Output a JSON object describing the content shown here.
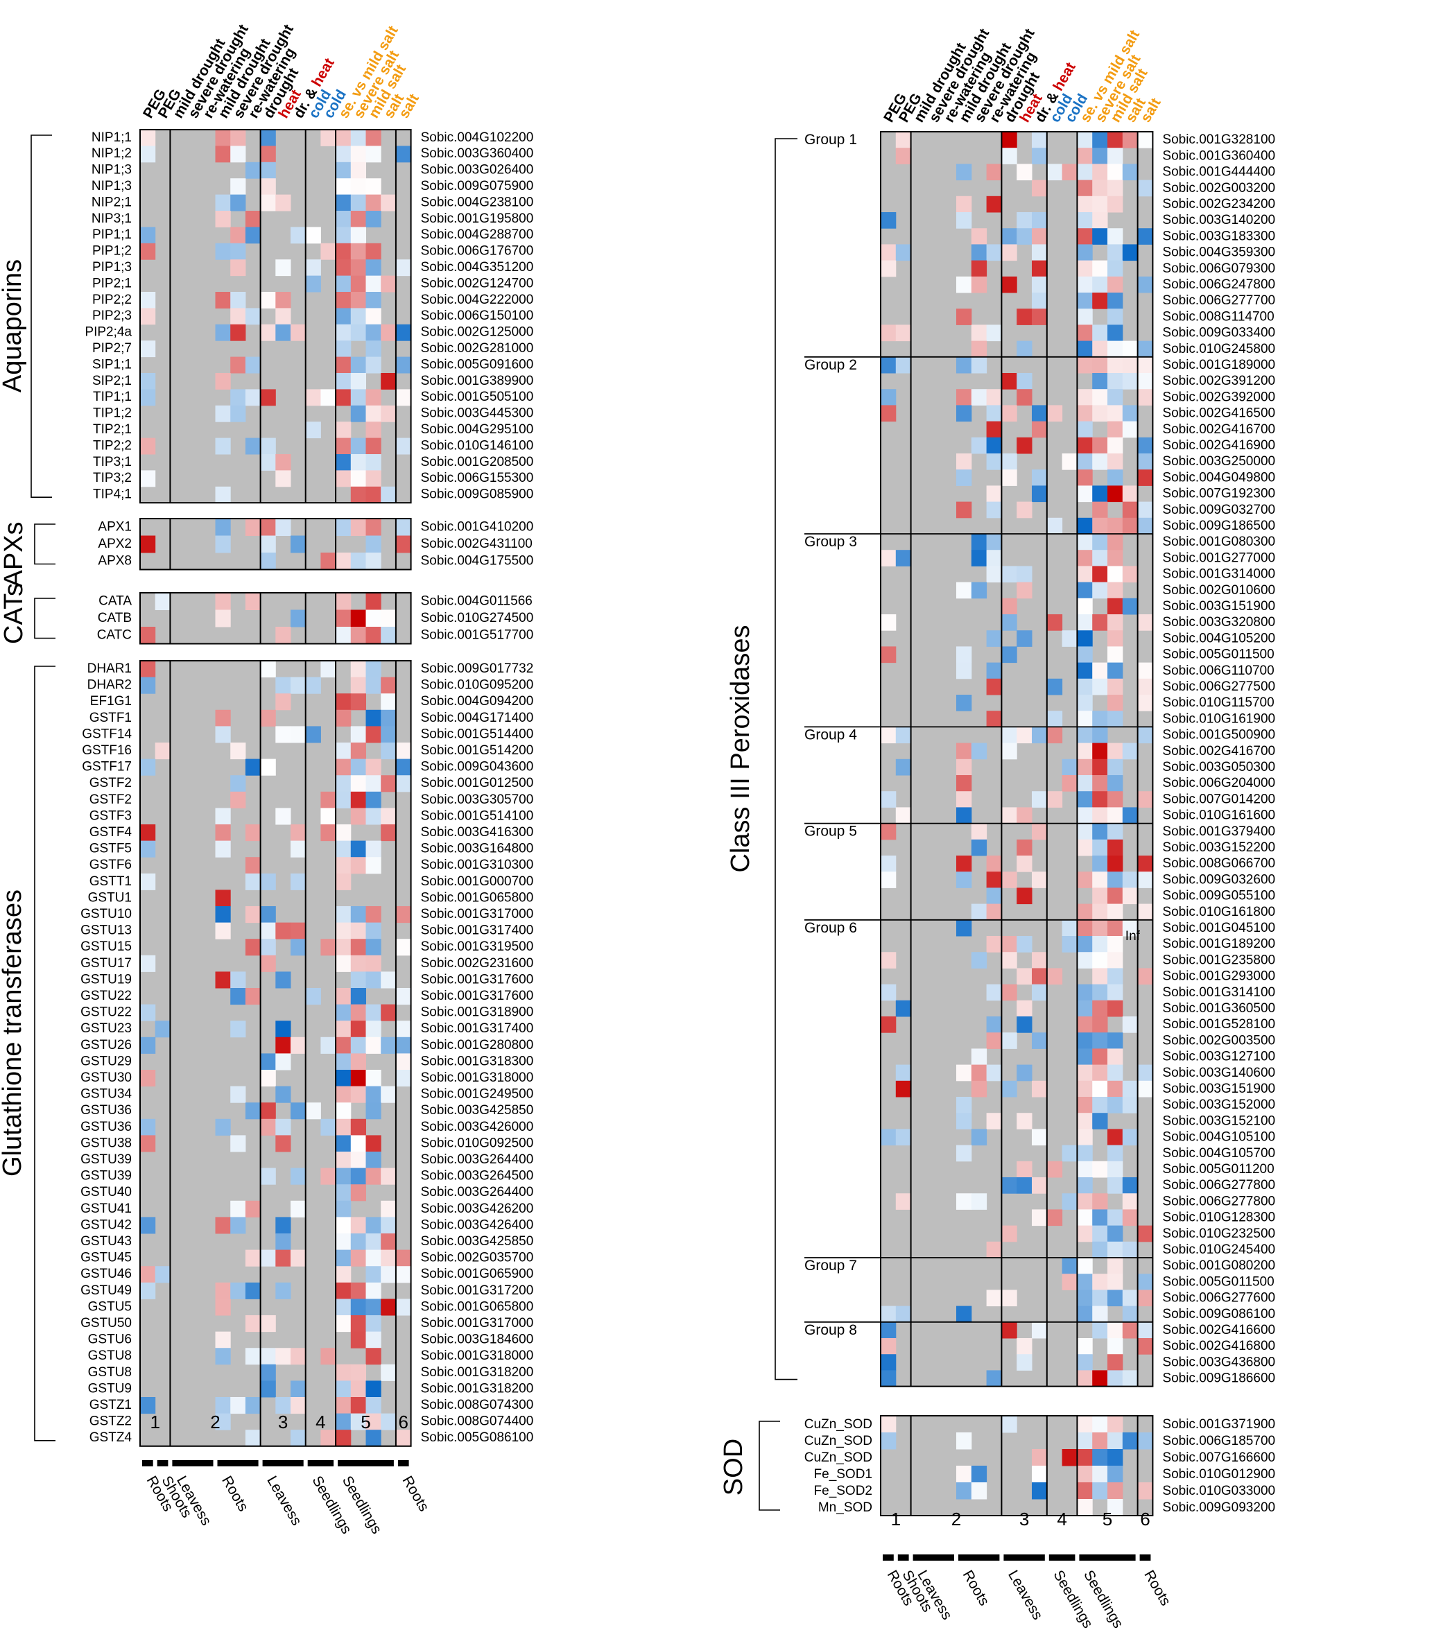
{
  "chart_data": {
    "type": "heatmap",
    "title": "",
    "columns": [
      {
        "label": "PEG",
        "color": "#000000"
      },
      {
        "label": "PEG",
        "color": "#000000"
      },
      {
        "label": "mild drought",
        "color": "#000000"
      },
      {
        "label": "severe drought",
        "color": "#000000"
      },
      {
        "label": "re-watering",
        "color": "#000000"
      },
      {
        "label": "mild drought",
        "color": "#000000"
      },
      {
        "label": "severe drought",
        "color": "#000000"
      },
      {
        "label": "re-watering",
        "color": "#000000"
      },
      {
        "label": "drought",
        "color": "#000000"
      },
      {
        "label": "heat",
        "color": "#cc0000"
      },
      {
        "label": "dr. & heat",
        "parts": [
          {
            "t": "dr. & ",
            "c": "#000000"
          },
          {
            "t": "heat",
            "c": "#cc0000"
          }
        ]
      },
      {
        "label": "cold",
        "color": "#1a72c4"
      },
      {
        "label": "cold",
        "color": "#1a72c4"
      },
      {
        "label": "se. vs mild salt",
        "color": "#f39c12"
      },
      {
        "label": "severe salt",
        "color": "#f39c12"
      },
      {
        "label": "mild salt",
        "color": "#f39c12"
      },
      {
        "label": "salt",
        "color": "#f39c12"
      },
      {
        "label": "salt",
        "color": "#f39c12"
      }
    ],
    "experiments": [
      "1",
      "2",
      "3",
      "4",
      "5",
      "6"
    ],
    "tissues_left": [
      "Roots",
      "Shoots",
      "Leavess",
      "Roots",
      "Leavess",
      "Seedlings",
      "Seedlings",
      "Roots"
    ],
    "tissues_right": [
      "Roots",
      "Shoots",
      "Leavess",
      "Roots",
      "Leavess",
      "Seedlings",
      "Seedlings",
      "Roots"
    ],
    "color_scale": {
      "low": "#0a6ac8",
      "mid": "#ffffff",
      "high": "#c80000",
      "na": "#bebebe"
    },
    "panels_left": [
      {
        "name": "Aquaporins",
        "rows": [
          {
            "label": "NIP1;1",
            "gene": "Sobic.004G102200"
          },
          {
            "label": "NIP1;2",
            "gene": "Sobic.003G360400"
          },
          {
            "label": "NIP1;3",
            "gene": "Sobic.003G026400"
          },
          {
            "label": "NIP1;3",
            "gene": "Sobic.009G075900"
          },
          {
            "label": "NIP2;1",
            "gene": "Sobic.004G238100"
          },
          {
            "label": "NIP3;1",
            "gene": "Sobic.001G195800"
          },
          {
            "label": "PIP1;1",
            "gene": "Sobic.004G288700"
          },
          {
            "label": "PIP1;2",
            "gene": "Sobic.006G176700"
          },
          {
            "label": "PIP1;3",
            "gene": "Sobic.004G351200"
          },
          {
            "label": "PIP2;1",
            "gene": "Sobic.002G124700"
          },
          {
            "label": "PIP2;2",
            "gene": "Sobic.004G222000"
          },
          {
            "label": "PIP2;3",
            "gene": "Sobic.006G150100"
          },
          {
            "label": "PIP2;4a",
            "gene": "Sobic.002G125000"
          },
          {
            "label": "PIP2;7",
            "gene": "Sobic.002G281000"
          },
          {
            "label": "SIP1;1",
            "gene": "Sobic.005G091600"
          },
          {
            "label": "SIP2;1",
            "gene": "Sobic.001G389900"
          },
          {
            "label": "TIP1;1",
            "gene": "Sobic.001G505100"
          },
          {
            "label": "TIP1;2",
            "gene": "Sobic.003G445300"
          },
          {
            "label": "TIP2;1",
            "gene": "Sobic.004G295100"
          },
          {
            "label": "TIP2;2",
            "gene": "Sobic.010G146100"
          },
          {
            "label": "TIP3;1",
            "gene": "Sobic.001G208500"
          },
          {
            "label": "TIP3;2",
            "gene": "Sobic.006G155300"
          },
          {
            "label": "TIP4;1",
            "gene": "Sobic.009G085900"
          }
        ]
      },
      {
        "name": "APXs",
        "rows": [
          {
            "label": "APX1",
            "gene": "Sobic.001G410200"
          },
          {
            "label": "APX2",
            "gene": "Sobic.002G431100"
          },
          {
            "label": "APX8",
            "gene": "Sobic.004G175500"
          }
        ]
      },
      {
        "name": "CATs",
        "rows": [
          {
            "label": "CATA",
            "gene": "Sobic.004G011566"
          },
          {
            "label": "CATB",
            "gene": "Sobic.010G274500"
          },
          {
            "label": "CATC",
            "gene": "Sobic.001G517700"
          }
        ]
      },
      {
        "name": "Glutathione transferases",
        "rows": [
          {
            "label": "DHAR1",
            "gene": "Sobic.009G017732"
          },
          {
            "label": "DHAR2",
            "gene": "Sobic.010G095200"
          },
          {
            "label": "EF1G1",
            "gene": "Sobic.004G094200"
          },
          {
            "label": "GSTF1",
            "gene": "Sobic.004G171400"
          },
          {
            "label": "GSTF14",
            "gene": "Sobic.001G514400"
          },
          {
            "label": "GSTF16",
            "gene": "Sobic.001G514200"
          },
          {
            "label": "GSTF17",
            "gene": "Sobic.009G043600"
          },
          {
            "label": "GSTF2",
            "gene": "Sobic.001G012500"
          },
          {
            "label": "GSTF2",
            "gene": "Sobic.003G305700"
          },
          {
            "label": "GSTF3",
            "gene": "Sobic.001G514100"
          },
          {
            "label": "GSTF4",
            "gene": "Sobic.003G416300"
          },
          {
            "label": "GSTF5",
            "gene": "Sobic.003G164800"
          },
          {
            "label": "GSTF6",
            "gene": "Sobic.001G310300"
          },
          {
            "label": "GSTT1",
            "gene": "Sobic.001G000700"
          },
          {
            "label": "GSTU1",
            "gene": "Sobic.001G065800"
          },
          {
            "label": "GSTU10",
            "gene": "Sobic.001G317000"
          },
          {
            "label": "GSTU13",
            "gene": "Sobic.001G317400"
          },
          {
            "label": "GSTU15",
            "gene": "Sobic.001G319500"
          },
          {
            "label": "GSTU17",
            "gene": "Sobic.002G231600"
          },
          {
            "label": "GSTU19",
            "gene": "Sobic.001G317600"
          },
          {
            "label": "GSTU22",
            "gene": "Sobic.001G317600"
          },
          {
            "label": "GSTU22",
            "gene": "Sobic.001G318900"
          },
          {
            "label": "GSTU23",
            "gene": "Sobic.001G317400"
          },
          {
            "label": "GSTU26",
            "gene": "Sobic.001G280800"
          },
          {
            "label": "GSTU29",
            "gene": "Sobic.001G318300"
          },
          {
            "label": "GSTU30",
            "gene": "Sobic.001G318000"
          },
          {
            "label": "GSTU34",
            "gene": "Sobic.001G249500"
          },
          {
            "label": "GSTU36",
            "gene": "Sobic.003G425850"
          },
          {
            "label": "GSTU36",
            "gene": "Sobic.003G426000"
          },
          {
            "label": "GSTU38",
            "gene": "Sobic.010G092500"
          },
          {
            "label": "GSTU39",
            "gene": "Sobic.003G264400"
          },
          {
            "label": "GSTU39",
            "gene": "Sobic.003G264500"
          },
          {
            "label": "GSTU40",
            "gene": "Sobic.003G264400"
          },
          {
            "label": "GSTU41",
            "gene": "Sobic.003G426200"
          },
          {
            "label": "GSTU42",
            "gene": "Sobic.003G426400"
          },
          {
            "label": "GSTU43",
            "gene": "Sobic.003G425850"
          },
          {
            "label": "GSTU45",
            "gene": "Sobic.002G035700"
          },
          {
            "label": "GSTU46",
            "gene": "Sobic.001G065900"
          },
          {
            "label": "GSTU49",
            "gene": "Sobic.001G317200"
          },
          {
            "label": "GSTU5",
            "gene": "Sobic.001G065800"
          },
          {
            "label": "GSTU50",
            "gene": "Sobic.001G317000"
          },
          {
            "label": "GSTU6",
            "gene": "Sobic.003G184600"
          },
          {
            "label": "GSTU8",
            "gene": "Sobic.001G318000"
          },
          {
            "label": "GSTU8",
            "gene": "Sobic.001G318200"
          },
          {
            "label": "GSTU9",
            "gene": "Sobic.001G318200"
          },
          {
            "label": "GSTZ1",
            "gene": "Sobic.008G074300"
          },
          {
            "label": "GSTZ2",
            "gene": "Sobic.008G074400"
          },
          {
            "label": "GSTZ4",
            "gene": "Sobic.005G086100"
          }
        ]
      }
    ],
    "panels_right": [
      {
        "name": "Class III Peroxidases",
        "groups": [
          {
            "name": "Group 1",
            "genes": [
              "Sobic.001G328100",
              "Sobic.001G360400",
              "Sobic.001G444400",
              "Sobic.002G003200",
              "Sobic.002G234200",
              "Sobic.003G140200",
              "Sobic.003G183300",
              "Sobic.004G359300",
              "Sobic.006G079300",
              "Sobic.006G247800",
              "Sobic.006G277700",
              "Sobic.008G114700",
              "Sobic.009G033400",
              "Sobic.010G245800"
            ]
          },
          {
            "name": "Group 2",
            "genes": [
              "Sobic.001G189000",
              "Sobic.002G391200",
              "Sobic.002G392000",
              "Sobic.002G416500",
              "Sobic.002G416700",
              "Sobic.002G416900",
              "Sobic.003G250000",
              "Sobic.004G049800",
              "Sobic.007G192300",
              "Sobic.009G032700",
              "Sobic.009G186500"
            ]
          },
          {
            "name": "Group 3",
            "genes": [
              "Sobic.001G080300",
              "Sobic.001G277000",
              "Sobic.001G314000",
              "Sobic.002G010600",
              "Sobic.003G151900",
              "Sobic.003G320800",
              "Sobic.004G105200",
              "Sobic.005G011500",
              "Sobic.006G110700",
              "Sobic.006G277500",
              "Sobic.010G115700",
              "Sobic.010G161900"
            ]
          },
          {
            "name": "Group 4",
            "genes": [
              "Sobic.001G500900",
              "Sobic.002G416700",
              "Sobic.003G050300",
              "Sobic.006G204000",
              "Sobic.007G014200",
              "Sobic.010G161600"
            ]
          },
          {
            "name": "Group 5",
            "genes": [
              "Sobic.001G379400",
              "Sobic.003G152200",
              "Sobic.008G066700",
              "Sobic.009G032600",
              "Sobic.009G055100",
              "Sobic.010G161800"
            ]
          },
          {
            "name": "Group 6",
            "genes": [
              "Sobic.001G045100",
              "Sobic.001G189200",
              "Sobic.001G235800",
              "Sobic.001G293000",
              "Sobic.001G314100",
              "Sobic.001G360500",
              "Sobic.001G528100",
              "Sobic.002G003500",
              "Sobic.003G127100",
              "Sobic.003G140600",
              "Sobic.003G151900",
              "Sobic.003G152000",
              "Sobic.003G152100",
              "Sobic.004G105100",
              "Sobic.004G105700",
              "Sobic.005G011200",
              "Sobic.006G277800",
              "Sobic.006G277800",
              "Sobic.010G128300",
              "Sobic.010G232500",
              "Sobic.010G245400"
            ]
          },
          {
            "name": "Group 7",
            "genes": [
              "Sobic.001G080200",
              "Sobic.005G011500",
              "Sobic.006G277600",
              "Sobic.009G086100"
            ]
          },
          {
            "name": "Group 8",
            "genes": [
              "Sobic.002G416600",
              "Sobic.002G416800",
              "Sobic.003G436800",
              "Sobic.009G186600"
            ]
          }
        ]
      },
      {
        "name": "SOD",
        "rows": [
          {
            "label": "CuZn_SOD",
            "gene": "Sobic.001G371900"
          },
          {
            "label": "CuZn_SOD",
            "gene": "Sobic.006G185700"
          },
          {
            "label": "CuZn_SOD",
            "gene": "Sobic.007G166600"
          },
          {
            "label": "Fe_SOD1",
            "gene": "Sobic.010G012900"
          },
          {
            "label": "Fe_SOD2",
            "gene": "Sobic.010G033000"
          },
          {
            "label": "Mn_SOD",
            "gene": "Sobic.009G093200"
          }
        ]
      }
    ],
    "annotations": {
      "right_inf_marker": "Inf"
    }
  }
}
